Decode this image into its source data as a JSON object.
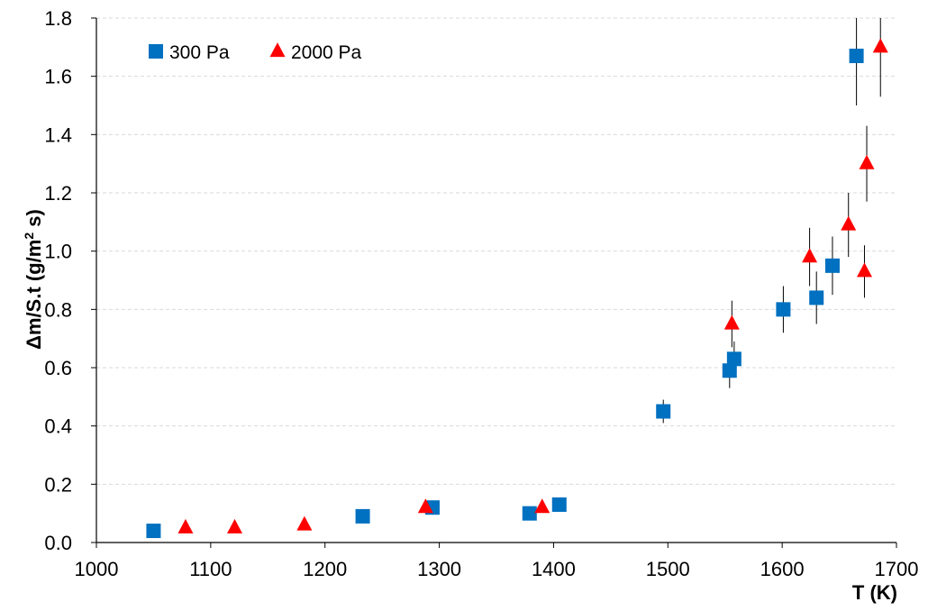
{
  "chart_data": {
    "type": "scatter",
    "title": "",
    "xlabel": "T (K)",
    "ylabel_main": "Δm/S.t (g/m",
    "ylabel_sup": "2",
    "ylabel_tail": " s)",
    "xlim": [
      1000,
      1700
    ],
    "ylim": [
      0,
      1.8
    ],
    "x_ticks": [
      1000,
      1100,
      1200,
      1300,
      1400,
      1500,
      1600,
      1700
    ],
    "y_ticks": [
      0.0,
      0.2,
      0.4,
      0.6,
      0.8,
      1.0,
      1.2,
      1.4,
      1.6,
      1.8
    ],
    "x_tick_labels": [
      "1000",
      "1100",
      "1200",
      "1300",
      "1400",
      "1500",
      "1600",
      "1700"
    ],
    "y_tick_labels": [
      "0.0",
      "0.2",
      "0.4",
      "0.6",
      "0.8",
      "1.0",
      "1.2",
      "1.4",
      "1.6",
      "1.8"
    ],
    "grid": "horizontal-dashed",
    "legend_position": "top-left",
    "series": [
      {
        "name": "300 Pa",
        "marker": "square",
        "color": "#0070C0",
        "points": [
          {
            "x": 1050,
            "y": 0.04,
            "err": 0
          },
          {
            "x": 1233,
            "y": 0.09,
            "err": 0
          },
          {
            "x": 1294,
            "y": 0.12,
            "err": 0
          },
          {
            "x": 1379,
            "y": 0.1,
            "err": 0
          },
          {
            "x": 1405,
            "y": 0.13,
            "err": 0
          },
          {
            "x": 1496,
            "y": 0.45,
            "err": 0.04
          },
          {
            "x": 1554,
            "y": 0.59,
            "err": 0.06
          },
          {
            "x": 1558,
            "y": 0.63,
            "err": 0.06
          },
          {
            "x": 1601,
            "y": 0.8,
            "err": 0.08
          },
          {
            "x": 1630,
            "y": 0.84,
            "err": 0.09
          },
          {
            "x": 1644,
            "y": 0.95,
            "err": 0.1
          },
          {
            "x": 1665,
            "y": 1.67,
            "err": 0.17
          }
        ]
      },
      {
        "name": "2000 Pa",
        "marker": "triangle",
        "color": "#FF0000",
        "points": [
          {
            "x": 1078,
            "y": 0.05,
            "err": 0
          },
          {
            "x": 1121,
            "y": 0.05,
            "err": 0
          },
          {
            "x": 1182,
            "y": 0.06,
            "err": 0
          },
          {
            "x": 1288,
            "y": 0.12,
            "err": 0
          },
          {
            "x": 1390,
            "y": 0.12,
            "err": 0
          },
          {
            "x": 1556,
            "y": 0.75,
            "err": 0.08
          },
          {
            "x": 1624,
            "y": 0.98,
            "err": 0.1
          },
          {
            "x": 1658,
            "y": 1.09,
            "err": 0.11
          },
          {
            "x": 1672,
            "y": 0.93,
            "err": 0.09
          },
          {
            "x": 1674,
            "y": 1.3,
            "err": 0.13
          },
          {
            "x": 1686,
            "y": 1.7,
            "err": 0.17
          }
        ]
      }
    ]
  }
}
